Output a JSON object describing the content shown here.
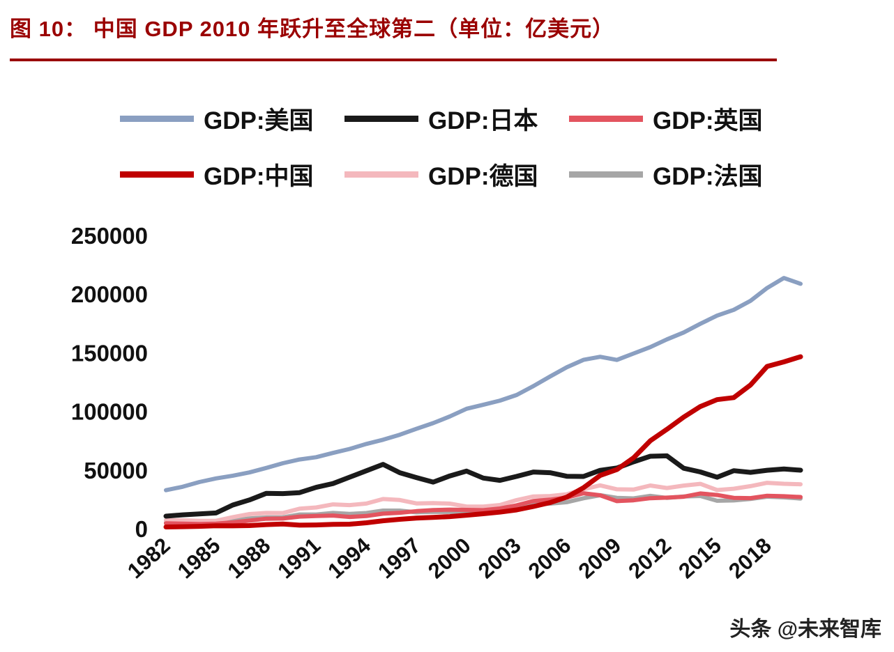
{
  "header": {
    "figure_label": "图 10",
    "title": "图 10： 中国 GDP 2010 年跃升至全球第二（单位：亿美元）"
  },
  "colors": {
    "accent": "#9a0000",
    "text": "#111111",
    "background": "#ffffff"
  },
  "footer": {
    "watermark": "头条 @未来智库"
  },
  "chart_data": {
    "type": "line",
    "title": "图 10： 中国 GDP 2010 年跃升至全球第二（单位：亿美元）",
    "unit": "亿美元",
    "grid": false,
    "legend_position": "top",
    "ylim": [
      0,
      250000
    ],
    "yticks": [
      0,
      50000,
      100000,
      150000,
      200000,
      250000
    ],
    "xticks": [
      1982,
      1985,
      1988,
      1991,
      1994,
      1997,
      2000,
      2003,
      2006,
      2009,
      2012,
      2015,
      2018
    ],
    "x": [
      1982,
      1983,
      1984,
      1985,
      1986,
      1987,
      1988,
      1989,
      1990,
      1991,
      1992,
      1993,
      1994,
      1995,
      1996,
      1997,
      1998,
      1999,
      2000,
      2001,
      2002,
      2003,
      2004,
      2005,
      2006,
      2007,
      2008,
      2009,
      2010,
      2011,
      2012,
      2013,
      2014,
      2015,
      2016,
      2017,
      2018,
      2019,
      2020
    ],
    "series": [
      {
        "name": "GDP:美国",
        "color": "#8a9fc1",
        "width": 6,
        "z": 5,
        "values": [
          33450,
          36340,
          40380,
          43470,
          45800,
          48550,
          52360,
          56420,
          59630,
          61580,
          65200,
          68580,
          72870,
          76400,
          80730,
          85770,
          90630,
          96310,
          102850,
          106220,
          109770,
          114580,
          122140,
          130370,
          138160,
          144520,
          147130,
          144490,
          149920,
          155430,
          161970,
          167850,
          175270,
          182250,
          187150,
          194850,
          205800,
          214330,
          209370
        ]
      },
      {
        "name": "GDP:日本",
        "color": "#1a1a1a",
        "width": 7,
        "z": 4,
        "values": [
          11290,
          12430,
          13180,
          14010,
          20790,
          25130,
          30710,
          30540,
          31330,
          35840,
          39080,
          44540,
          49980,
          55460,
          48340,
          44160,
          40330,
          45620,
          49680,
          43740,
          41820,
          45190,
          48930,
          48340,
          45300,
          45150,
          50380,
          52310,
          57590,
          62330,
          62720,
          52120,
          48970,
          44450,
          50030,
          48660,
          50410,
          51480,
          50490
        ]
      },
      {
        "name": "GDP:英国",
        "color": "#e3545f",
        "width": 6,
        "z": 3,
        "values": [
          5150,
          4890,
          4610,
          4890,
          6010,
          7460,
          9100,
          9270,
          10930,
          11430,
          11790,
          10610,
          11400,
          13450,
          14200,
          15580,
          16520,
          16870,
          16650,
          16400,
          17840,
          20530,
          24160,
          25380,
          27130,
          30840,
          29070,
          24120,
          24850,
          26630,
          27070,
          27840,
          30650,
          29340,
          26890,
          26660,
          28710,
          28290,
          27640
        ]
      },
      {
        "name": "GDP:中国",
        "color": "#c00000",
        "width": 7,
        "z": 6,
        "values": [
          2050,
          2310,
          2600,
          3100,
          3000,
          3270,
          4070,
          4560,
          3610,
          3830,
          4270,
          4450,
          5640,
          7340,
          8640,
          9620,
          10300,
          10940,
          12110,
          13390,
          14710,
          16600,
          19550,
          22860,
          27520,
          35500,
          45940,
          51020,
          61010,
          75520,
          85320,
          95700,
          104760,
          110620,
          112330,
          123100,
          138950,
          142800,
          147230
        ]
      },
      {
        "name": "GDP:德国",
        "color": "#f4b8bd",
        "width": 6,
        "z": 2,
        "values": [
          7810,
          7700,
          7230,
          7320,
          10460,
          13070,
          14010,
          13930,
          17650,
          18690,
          21310,
          20720,
          22060,
          25920,
          25030,
          22130,
          22430,
          21990,
          19480,
          19450,
          20790,
          25010,
          28100,
          28460,
          29920,
          34240,
          37520,
          34180,
          33960,
          37440,
          35270,
          37330,
          38830,
          33560,
          34690,
          36900,
          39740,
          38880,
          38460
        ]
      },
      {
        "name": "GDP:法国",
        "color": "#a6a6a6",
        "width": 6,
        "z": 1,
        "values": [
          5840,
          5590,
          5310,
          5530,
          7710,
          9340,
          10180,
          10250,
          12690,
          12690,
          14010,
          13220,
          13930,
          16010,
          16050,
          14520,
          15030,
          14930,
          13620,
          13770,
          14940,
          18400,
          21160,
          21960,
          23200,
          26570,
          29180,
          26900,
          26420,
          28610,
          26830,
          28110,
          28520,
          24380,
          24710,
          25950,
          27900,
          27290,
          26300
        ]
      }
    ]
  }
}
